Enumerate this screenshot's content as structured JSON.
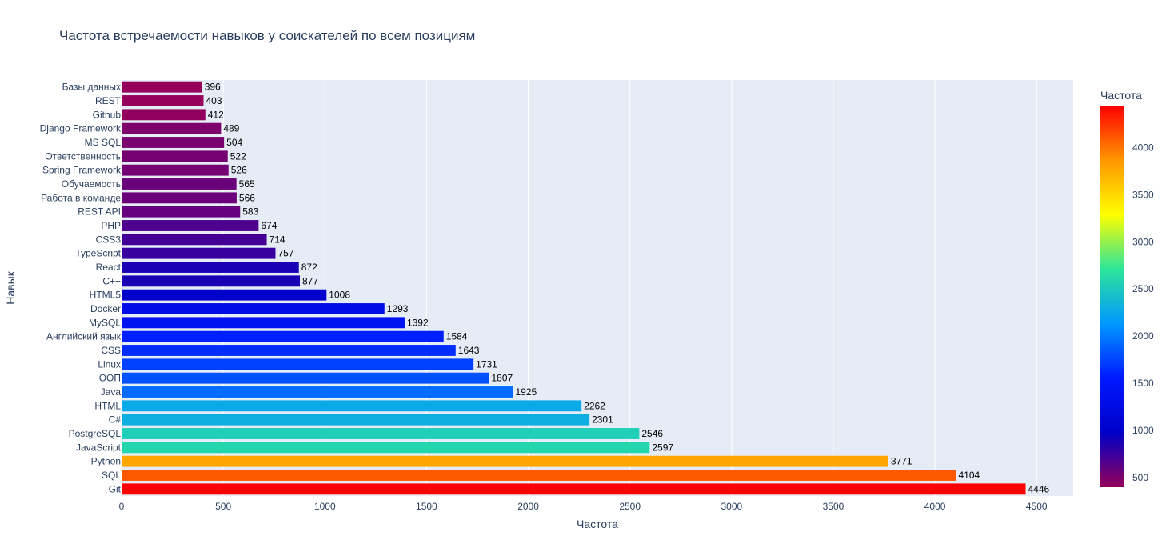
{
  "chart_data": {
    "type": "bar",
    "orientation": "horizontal",
    "title": "Частота встречаемости навыков у соискателей по всем позициям",
    "xlabel": "Частота",
    "ylabel": "Навык",
    "xlim": [
      0,
      4680
    ],
    "xticks": [
      0,
      500,
      1000,
      1500,
      2000,
      2500,
      3000,
      3500,
      4000,
      4500
    ],
    "grid": true,
    "categories": [
      "Базы данных",
      "REST",
      "Github",
      "Django Framework",
      "MS SQL",
      "Ответственность",
      "Spring Framework",
      "Обучаемость",
      "Работа в команде",
      "REST API",
      "PHP",
      "CSS3",
      "TypeScript",
      "React",
      "C++",
      "HTML5",
      "Docker",
      "MySQL",
      "Английский язык",
      "CSS",
      "Linux",
      "ООП",
      "Java",
      "HTML",
      "C#",
      "PostgreSQL",
      "JavaScript",
      "Python",
      "SQL",
      "Git"
    ],
    "values": [
      396,
      403,
      412,
      489,
      504,
      522,
      526,
      565,
      566,
      583,
      674,
      714,
      757,
      872,
      877,
      1008,
      1293,
      1392,
      1584,
      1643,
      1731,
      1807,
      1925,
      2262,
      2301,
      2546,
      2597,
      3771,
      4104,
      4446
    ],
    "colorbar": {
      "title": "Частота",
      "range": [
        396,
        4446
      ],
      "ticks": [
        500,
        1000,
        1500,
        2000,
        2500,
        3000,
        3500,
        4000
      ],
      "colorscale": [
        "#96005a",
        "#0000c8",
        "#0019ff",
        "#0098ff",
        "#2ce59a",
        "#ffff00",
        "#ff9600",
        "#ff0000"
      ]
    }
  }
}
